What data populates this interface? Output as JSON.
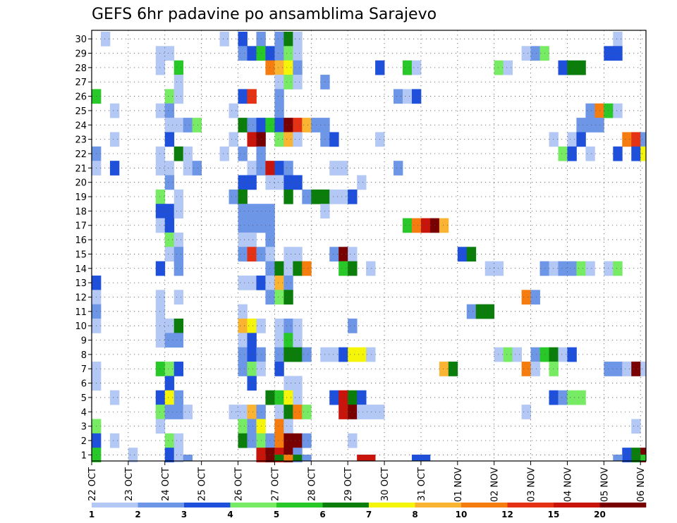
{
  "chart_data": {
    "type": "heatmap",
    "title": "GEFS 6hr padavine po ansamblima Sarajevo",
    "xlabel": "",
    "ylabel": "",
    "y_members": [
      1,
      2,
      3,
      4,
      5,
      6,
      7,
      8,
      9,
      10,
      11,
      12,
      13,
      14,
      15,
      16,
      17,
      18,
      19,
      20,
      21,
      22,
      23,
      24,
      25,
      26,
      27,
      28,
      29,
      30
    ],
    "y_tick_labels": [
      "1",
      "2",
      "3",
      "4",
      "5",
      "6",
      "7",
      "8",
      "9",
      "10",
      "11",
      "12",
      "13",
      "14",
      "15",
      "16",
      "17",
      "18",
      "19",
      "20",
      "21",
      "22",
      "23",
      "24",
      "25",
      "26",
      "27",
      "28",
      "29",
      "30"
    ],
    "x_dates": [
      "22 OCT",
      "23 OCT",
      "24 OCT",
      "25 OCT",
      "26 OCT",
      "27 OCT",
      "28 OCT",
      "29 OCT",
      "30 OCT",
      "31 OCT",
      "01 NOV",
      "02 NOV",
      "03 NOV",
      "04 NOV",
      "05 NOV",
      "06 NOV"
    ],
    "time_step_hours": 6,
    "steps": 61,
    "colorbar": {
      "levels": [
        "1",
        "2",
        "3",
        "4",
        "5",
        "6",
        "7",
        "8",
        "10",
        "12",
        "15",
        "20"
      ],
      "colors": [
        "#b4c8f5",
        "#6e96e6",
        "#1e50dc",
        "#78eb64",
        "#28c828",
        "#0a7d0a",
        "#f5f50a",
        "#fab432",
        "#f57d0f",
        "#e63214",
        "#c8140a",
        "#780000"
      ]
    },
    "cells": [
      [
        1,
        30,
        0
      ],
      [
        14,
        30,
        0
      ],
      [
        16,
        30,
        2
      ],
      [
        18,
        30,
        1
      ],
      [
        20,
        30,
        1
      ],
      [
        21,
        30,
        5
      ],
      [
        22,
        30,
        0
      ],
      [
        57,
        30,
        0
      ],
      [
        7,
        29,
        0
      ],
      [
        8,
        29,
        0
      ],
      [
        16,
        29,
        1
      ],
      [
        17,
        29,
        2
      ],
      [
        18,
        29,
        4
      ],
      [
        19,
        29,
        2
      ],
      [
        20,
        29,
        1
      ],
      [
        21,
        29,
        3
      ],
      [
        22,
        29,
        0
      ],
      [
        47,
        29,
        0
      ],
      [
        48,
        29,
        1
      ],
      [
        49,
        29,
        3
      ],
      [
        56,
        29,
        2
      ],
      [
        57,
        29,
        2
      ],
      [
        7,
        28,
        0
      ],
      [
        9,
        28,
        4
      ],
      [
        19,
        28,
        8
      ],
      [
        20,
        28,
        7
      ],
      [
        21,
        28,
        6
      ],
      [
        22,
        28,
        1
      ],
      [
        31,
        28,
        2
      ],
      [
        34,
        28,
        4
      ],
      [
        35,
        28,
        0
      ],
      [
        44,
        28,
        3
      ],
      [
        45,
        28,
        0
      ],
      [
        51,
        28,
        2
      ],
      [
        52,
        28,
        5
      ],
      [
        53,
        28,
        5
      ],
      [
        9,
        27,
        0
      ],
      [
        20,
        27,
        0
      ],
      [
        21,
        27,
        3
      ],
      [
        22,
        27,
        0
      ],
      [
        25,
        27,
        1
      ],
      [
        0,
        26,
        4
      ],
      [
        8,
        26,
        3
      ],
      [
        9,
        26,
        0
      ],
      [
        16,
        26,
        2
      ],
      [
        17,
        26,
        9
      ],
      [
        20,
        26,
        1
      ],
      [
        33,
        26,
        1
      ],
      [
        34,
        26,
        0
      ],
      [
        35,
        26,
        2
      ],
      [
        2,
        25,
        0
      ],
      [
        7,
        25,
        0
      ],
      [
        8,
        25,
        1
      ],
      [
        15,
        25,
        0
      ],
      [
        20,
        25,
        1
      ],
      [
        54,
        25,
        1
      ],
      [
        55,
        25,
        8
      ],
      [
        56,
        25,
        4
      ],
      [
        57,
        25,
        0
      ],
      [
        8,
        24,
        0
      ],
      [
        9,
        24,
        0
      ],
      [
        10,
        24,
        1
      ],
      [
        11,
        24,
        3
      ],
      [
        16,
        24,
        5
      ],
      [
        17,
        24,
        1
      ],
      [
        18,
        24,
        2
      ],
      [
        19,
        24,
        4
      ],
      [
        20,
        24,
        2
      ],
      [
        21,
        24,
        11
      ],
      [
        22,
        24,
        9
      ],
      [
        23,
        24,
        7
      ],
      [
        24,
        24,
        1
      ],
      [
        25,
        24,
        1
      ],
      [
        53,
        24,
        1
      ],
      [
        54,
        24,
        1
      ],
      [
        55,
        24,
        1
      ],
      [
        2,
        23,
        0
      ],
      [
        8,
        23,
        2
      ],
      [
        15,
        23,
        0
      ],
      [
        17,
        23,
        10
      ],
      [
        18,
        23,
        11
      ],
      [
        20,
        23,
        3
      ],
      [
        21,
        23,
        7
      ],
      [
        22,
        23,
        0
      ],
      [
        25,
        23,
        1
      ],
      [
        26,
        23,
        2
      ],
      [
        31,
        23,
        0
      ],
      [
        50,
        23,
        0
      ],
      [
        52,
        23,
        0
      ],
      [
        53,
        23,
        2
      ],
      [
        58,
        23,
        8
      ],
      [
        59,
        23,
        9
      ],
      [
        60,
        23,
        1
      ],
      [
        0,
        22,
        1
      ],
      [
        7,
        22,
        0
      ],
      [
        9,
        22,
        5
      ],
      [
        10,
        22,
        0
      ],
      [
        14,
        22,
        0
      ],
      [
        16,
        22,
        1
      ],
      [
        18,
        22,
        1
      ],
      [
        51,
        22,
        3
      ],
      [
        52,
        22,
        2
      ],
      [
        54,
        22,
        0
      ],
      [
        57,
        22,
        2
      ],
      [
        59,
        22,
        2
      ],
      [
        60,
        22,
        6
      ],
      [
        0,
        21,
        0
      ],
      [
        2,
        21,
        2
      ],
      [
        7,
        21,
        0
      ],
      [
        8,
        21,
        0
      ],
      [
        10,
        21,
        0
      ],
      [
        11,
        21,
        1
      ],
      [
        17,
        21,
        0
      ],
      [
        18,
        21,
        1
      ],
      [
        19,
        21,
        10
      ],
      [
        20,
        21,
        2
      ],
      [
        21,
        21,
        1
      ],
      [
        26,
        21,
        0
      ],
      [
        27,
        21,
        0
      ],
      [
        33,
        21,
        1
      ],
      [
        8,
        20,
        1
      ],
      [
        16,
        20,
        2
      ],
      [
        17,
        20,
        2
      ],
      [
        19,
        20,
        0
      ],
      [
        20,
        20,
        0
      ],
      [
        21,
        20,
        2
      ],
      [
        22,
        20,
        2
      ],
      [
        29,
        20,
        0
      ],
      [
        7,
        19,
        3
      ],
      [
        9,
        19,
        0
      ],
      [
        15,
        19,
        1
      ],
      [
        16,
        19,
        5
      ],
      [
        21,
        19,
        5
      ],
      [
        23,
        19,
        1
      ],
      [
        24,
        19,
        5
      ],
      [
        25,
        19,
        5
      ],
      [
        26,
        19,
        0
      ],
      [
        27,
        19,
        0
      ],
      [
        28,
        19,
        2
      ],
      [
        7,
        18,
        2
      ],
      [
        8,
        18,
        2
      ],
      [
        9,
        18,
        0
      ],
      [
        16,
        18,
        1
      ],
      [
        17,
        18,
        1
      ],
      [
        18,
        18,
        1
      ],
      [
        19,
        18,
        1
      ],
      [
        25,
        18,
        0
      ],
      [
        7,
        17,
        0
      ],
      [
        8,
        17,
        2
      ],
      [
        16,
        17,
        1
      ],
      [
        17,
        17,
        1
      ],
      [
        18,
        17,
        1
      ],
      [
        19,
        17,
        1
      ],
      [
        34,
        17,
        4
      ],
      [
        35,
        17,
        8
      ],
      [
        36,
        17,
        10
      ],
      [
        37,
        17,
        11
      ],
      [
        38,
        17,
        7
      ],
      [
        8,
        16,
        3
      ],
      [
        9,
        16,
        0
      ],
      [
        16,
        16,
        0
      ],
      [
        17,
        16,
        0
      ],
      [
        19,
        16,
        1
      ],
      [
        8,
        15,
        0
      ],
      [
        9,
        15,
        1
      ],
      [
        16,
        15,
        1
      ],
      [
        17,
        15,
        9
      ],
      [
        18,
        15,
        1
      ],
      [
        19,
        15,
        0
      ],
      [
        21,
        15,
        0
      ],
      [
        22,
        15,
        0
      ],
      [
        26,
        15,
        1
      ],
      [
        27,
        15,
        11
      ],
      [
        28,
        15,
        0
      ],
      [
        40,
        15,
        2
      ],
      [
        41,
        15,
        5
      ],
      [
        7,
        14,
        2
      ],
      [
        9,
        14,
        1
      ],
      [
        19,
        14,
        1
      ],
      [
        20,
        14,
        5
      ],
      [
        21,
        14,
        0
      ],
      [
        22,
        14,
        5
      ],
      [
        23,
        14,
        8
      ],
      [
        27,
        14,
        4
      ],
      [
        28,
        14,
        5
      ],
      [
        30,
        14,
        0
      ],
      [
        43,
        14,
        0
      ],
      [
        44,
        14,
        0
      ],
      [
        49,
        14,
        1
      ],
      [
        50,
        14,
        0
      ],
      [
        51,
        14,
        1
      ],
      [
        52,
        14,
        1
      ],
      [
        53,
        14,
        3
      ],
      [
        54,
        14,
        0
      ],
      [
        56,
        14,
        0
      ],
      [
        57,
        14,
        3
      ],
      [
        0,
        13,
        2
      ],
      [
        16,
        13,
        0
      ],
      [
        17,
        13,
        0
      ],
      [
        18,
        13,
        2
      ],
      [
        19,
        13,
        0
      ],
      [
        20,
        13,
        7
      ],
      [
        21,
        13,
        1
      ],
      [
        0,
        12,
        0
      ],
      [
        7,
        12,
        0
      ],
      [
        9,
        12,
        0
      ],
      [
        19,
        12,
        1
      ],
      [
        20,
        12,
        3
      ],
      [
        21,
        12,
        5
      ],
      [
        47,
        12,
        8
      ],
      [
        48,
        12,
        1
      ],
      [
        0,
        11,
        1
      ],
      [
        7,
        11,
        0
      ],
      [
        16,
        11,
        0
      ],
      [
        41,
        11,
        1
      ],
      [
        42,
        11,
        5
      ],
      [
        43,
        11,
        5
      ],
      [
        0,
        10,
        0
      ],
      [
        7,
        10,
        0
      ],
      [
        8,
        10,
        0
      ],
      [
        9,
        10,
        5
      ],
      [
        16,
        10,
        7
      ],
      [
        17,
        10,
        6
      ],
      [
        18,
        10,
        0
      ],
      [
        20,
        10,
        0
      ],
      [
        21,
        10,
        1
      ],
      [
        22,
        10,
        0
      ],
      [
        28,
        10,
        1
      ],
      [
        7,
        9,
        0
      ],
      [
        8,
        9,
        1
      ],
      [
        9,
        9,
        1
      ],
      [
        16,
        9,
        0
      ],
      [
        17,
        9,
        2
      ],
      [
        20,
        9,
        0
      ],
      [
        21,
        9,
        4
      ],
      [
        22,
        9,
        0
      ],
      [
        16,
        8,
        1
      ],
      [
        17,
        8,
        2
      ],
      [
        18,
        8,
        1
      ],
      [
        20,
        8,
        1
      ],
      [
        21,
        8,
        5
      ],
      [
        22,
        8,
        5
      ],
      [
        23,
        8,
        1
      ],
      [
        25,
        8,
        0
      ],
      [
        26,
        8,
        0
      ],
      [
        27,
        8,
        2
      ],
      [
        28,
        8,
        6
      ],
      [
        29,
        8,
        6
      ],
      [
        30,
        8,
        0
      ],
      [
        44,
        8,
        0
      ],
      [
        45,
        8,
        3
      ],
      [
        46,
        8,
        0
      ],
      [
        48,
        8,
        1
      ],
      [
        49,
        8,
        4
      ],
      [
        50,
        8,
        5
      ],
      [
        51,
        8,
        0
      ],
      [
        52,
        8,
        2
      ],
      [
        0,
        7,
        0
      ],
      [
        7,
        7,
        4
      ],
      [
        8,
        7,
        3
      ],
      [
        9,
        7,
        2
      ],
      [
        16,
        7,
        1
      ],
      [
        17,
        7,
        3
      ],
      [
        18,
        7,
        0
      ],
      [
        20,
        7,
        2
      ],
      [
        38,
        7,
        7
      ],
      [
        39,
        7,
        5
      ],
      [
        47,
        7,
        8
      ],
      [
        48,
        7,
        0
      ],
      [
        50,
        7,
        3
      ],
      [
        56,
        7,
        1
      ],
      [
        57,
        7,
        1
      ],
      [
        58,
        7,
        0
      ],
      [
        59,
        7,
        11
      ],
      [
        60,
        7,
        0
      ],
      [
        0,
        6,
        0
      ],
      [
        8,
        6,
        2
      ],
      [
        17,
        6,
        2
      ],
      [
        21,
        6,
        0
      ],
      [
        22,
        6,
        0
      ],
      [
        2,
        5,
        0
      ],
      [
        7,
        5,
        2
      ],
      [
        8,
        5,
        6
      ],
      [
        9,
        5,
        1
      ],
      [
        19,
        5,
        5
      ],
      [
        20,
        5,
        4
      ],
      [
        21,
        5,
        6
      ],
      [
        22,
        5,
        0
      ],
      [
        26,
        5,
        2
      ],
      [
        27,
        5,
        10
      ],
      [
        28,
        5,
        5
      ],
      [
        29,
        5,
        2
      ],
      [
        50,
        5,
        2
      ],
      [
        51,
        5,
        1
      ],
      [
        52,
        5,
        3
      ],
      [
        53,
        5,
        3
      ],
      [
        7,
        4,
        3
      ],
      [
        8,
        4,
        1
      ],
      [
        9,
        4,
        1
      ],
      [
        10,
        4,
        0
      ],
      [
        15,
        4,
        0
      ],
      [
        16,
        4,
        0
      ],
      [
        17,
        4,
        7
      ],
      [
        18,
        4,
        1
      ],
      [
        20,
        4,
        0
      ],
      [
        21,
        4,
        5
      ],
      [
        22,
        4,
        8
      ],
      [
        23,
        4,
        3
      ],
      [
        27,
        4,
        10
      ],
      [
        28,
        4,
        11
      ],
      [
        29,
        4,
        0
      ],
      [
        30,
        4,
        0
      ],
      [
        31,
        4,
        0
      ],
      [
        47,
        4,
        0
      ],
      [
        0,
        3,
        3
      ],
      [
        7,
        3,
        0
      ],
      [
        16,
        3,
        3
      ],
      [
        17,
        3,
        1
      ],
      [
        18,
        3,
        6
      ],
      [
        20,
        3,
        8
      ],
      [
        21,
        3,
        0
      ],
      [
        59,
        3,
        0
      ],
      [
        0,
        2,
        2
      ],
      [
        2,
        2,
        0
      ],
      [
        8,
        2,
        3
      ],
      [
        9,
        2,
        0
      ],
      [
        16,
        2,
        5
      ],
      [
        17,
        2,
        1
      ],
      [
        18,
        2,
        3
      ],
      [
        19,
        2,
        1
      ],
      [
        20,
        2,
        8
      ],
      [
        21,
        2,
        11
      ],
      [
        22,
        2,
        11
      ],
      [
        23,
        2,
        1
      ],
      [
        28,
        2,
        0
      ],
      [
        0,
        1,
        4
      ],
      [
        4,
        1,
        0
      ],
      [
        8,
        1,
        2
      ],
      [
        9,
        1,
        0
      ],
      [
        18,
        1,
        10
      ],
      [
        19,
        1,
        11
      ],
      [
        20,
        1,
        10
      ],
      [
        21,
        1,
        11
      ],
      [
        22,
        1,
        1
      ],
      [
        58,
        1,
        2
      ],
      [
        59,
        1,
        5
      ],
      [
        60,
        1,
        11
      ],
      [
        10,
        0,
        1
      ],
      [
        18,
        0,
        10
      ],
      [
        20,
        0,
        5
      ],
      [
        21,
        0,
        8
      ],
      [
        22,
        0,
        5
      ],
      [
        23,
        0,
        1
      ],
      [
        29,
        0,
        10
      ],
      [
        30,
        0,
        10
      ],
      [
        35,
        0,
        2
      ],
      [
        36,
        0,
        2
      ],
      [
        57,
        0,
        1
      ],
      [
        60,
        0,
        4
      ]
    ]
  }
}
